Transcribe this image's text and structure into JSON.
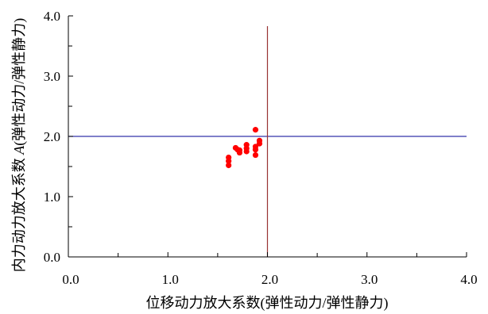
{
  "chart_data": {
    "type": "scatter",
    "xlabel": "位移动力放大系数(弹性动力/弹性静力)",
    "ylabel_prefix": "内力动力放大系数 ",
    "ylabel_symbol": "A",
    "ylabel_suffix": "(弹性动力/弹性静力)",
    "xlim": [
      0,
      4.0
    ],
    "ylim": [
      0,
      4.0
    ],
    "x_ticks": [
      "0.0",
      "1.0",
      "2.0",
      "3.0",
      "4.0"
    ],
    "y_ticks": [
      "0.0",
      "1.0",
      "2.0",
      "3.0",
      "4.0"
    ],
    "grid": false,
    "reference_lines": [
      {
        "orientation": "horizontal",
        "value": 2.0,
        "color": "#3333aa"
      },
      {
        "orientation": "vertical",
        "value": 2.0,
        "color": "#993333"
      }
    ],
    "series": [
      {
        "color": "#ff0000",
        "points": [
          {
            "x": 1.61,
            "y": 1.52
          },
          {
            "x": 1.61,
            "y": 1.59
          },
          {
            "x": 1.61,
            "y": 1.65
          },
          {
            "x": 1.68,
            "y": 1.81
          },
          {
            "x": 1.7,
            "y": 1.78
          },
          {
            "x": 1.72,
            "y": 1.73
          },
          {
            "x": 1.72,
            "y": 1.77
          },
          {
            "x": 1.79,
            "y": 1.75
          },
          {
            "x": 1.79,
            "y": 1.8
          },
          {
            "x": 1.79,
            "y": 1.86
          },
          {
            "x": 1.88,
            "y": 1.69
          },
          {
            "x": 1.88,
            "y": 1.78
          },
          {
            "x": 1.88,
            "y": 1.83
          },
          {
            "x": 1.88,
            "y": 2.11
          },
          {
            "x": 1.92,
            "y": 1.88
          },
          {
            "x": 1.92,
            "y": 1.93
          }
        ]
      }
    ]
  }
}
